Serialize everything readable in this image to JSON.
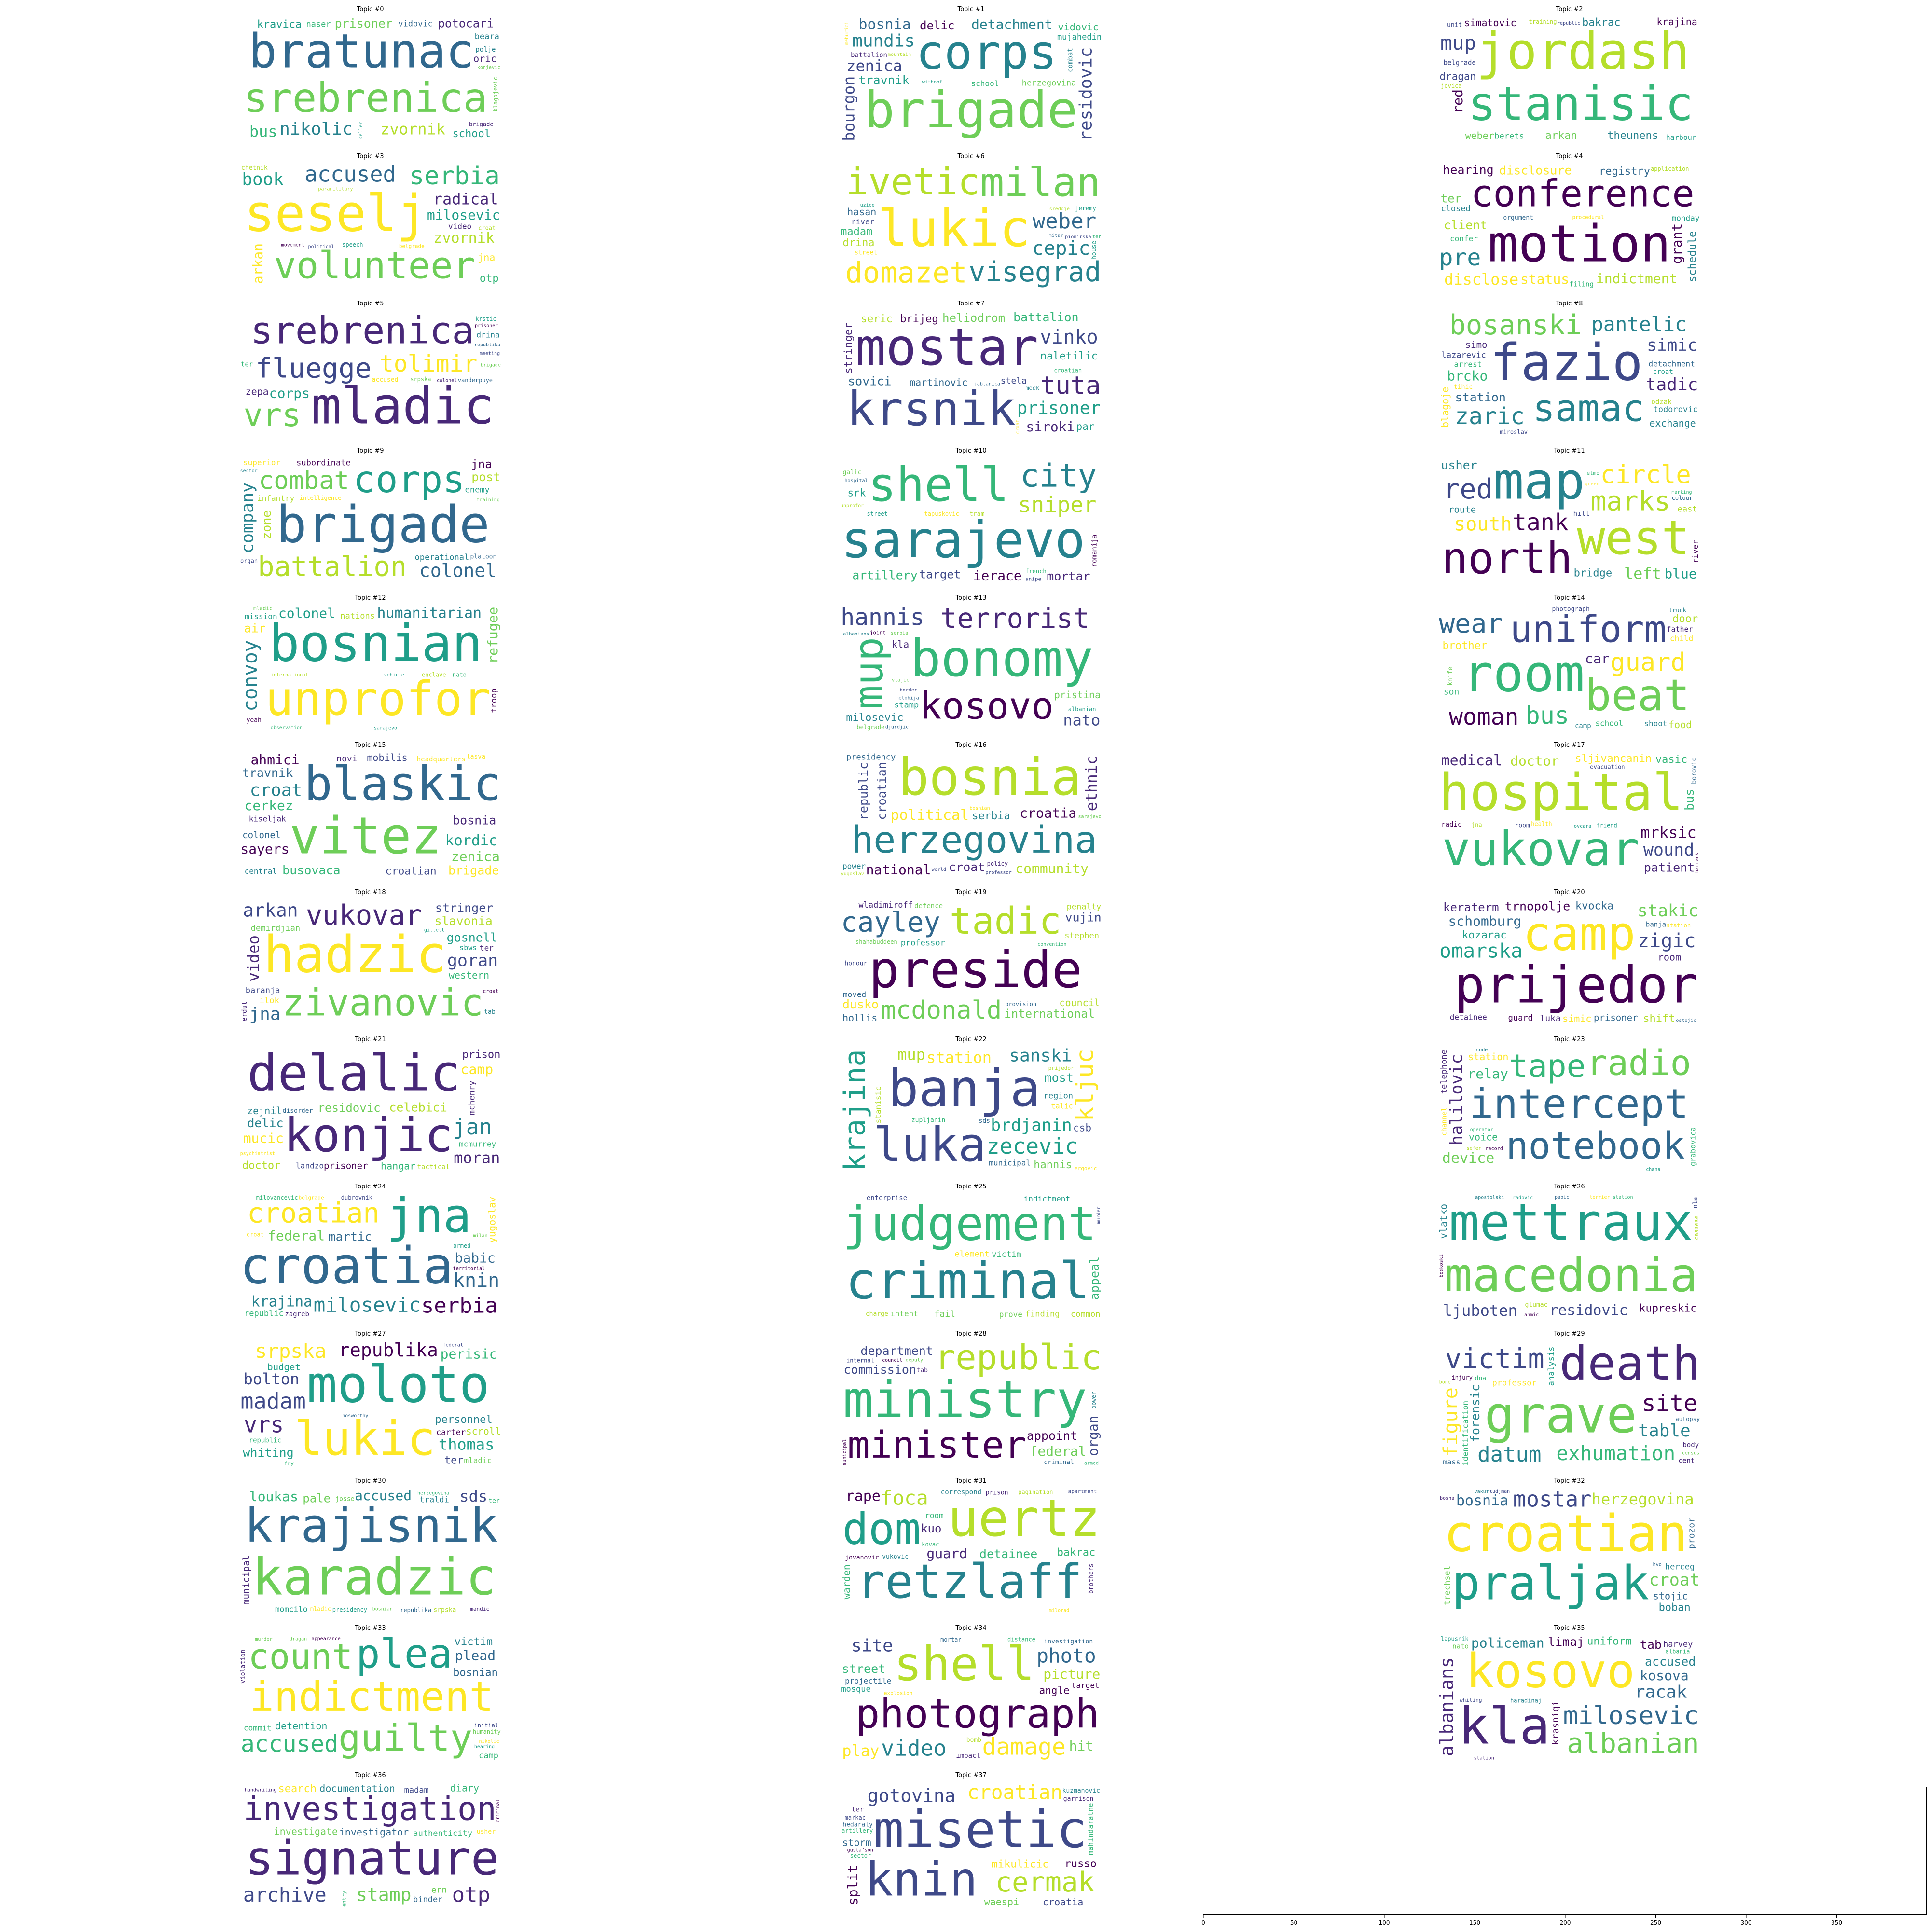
{
  "chart_data": {
    "type": "wordcloud-grid",
    "colormap": "viridis",
    "panels": [
      {
        "title": "Topic #0",
        "words": [
          "srebrenica",
          "bratunac",
          "nikolic",
          "zvornik",
          "potocari",
          "school",
          "bus",
          "kravica",
          "prisoner",
          "vidovic",
          "oric",
          "naser",
          "konjevic",
          "beara",
          "brigade",
          "blagojevic",
          "richardson",
          "seller",
          "polje",
          "stojanovic"
        ]
      },
      {
        "title": "Topic #1",
        "words": [
          "brigade",
          "corps",
          "mundis",
          "zenica",
          "bosnia",
          "detachment",
          "travnik",
          "mujahedin",
          "hadzihasanovic",
          "residovic",
          "vidovic",
          "herzegovina",
          "bourgon",
          "mehurici",
          "delic",
          "school",
          "battalion",
          "withopf",
          "combat",
          "mountain"
        ]
      },
      {
        "title": "Topic #2",
        "words": [
          "jordash",
          "stanisic",
          "serbia",
          "mup",
          "petrovic",
          "arkan",
          "weber",
          "theunens",
          "simatovic",
          "bakrac",
          "krajina",
          "berets",
          "training",
          "red",
          "harbour",
          "dragan",
          "belgrade",
          "jovica",
          "republic",
          "unit"
        ]
      },
      {
        "title": "Topic #3",
        "words": [
          "seselj",
          "volunteer",
          "accused",
          "serbia",
          "zvornik",
          "milosevic",
          "radical",
          "arkan",
          "bijeljina",
          "book",
          "video",
          "chetnik",
          "jna",
          "otp",
          "croat",
          "speech",
          "belgrade",
          "political",
          "movement",
          "paramilitary"
        ]
      },
      {
        "title": "Topic #6",
        "words": [
          "lukic",
          "ivetic",
          "visegrad",
          "milan",
          "domazet",
          "weber",
          "cepic",
          "madam",
          "hasan",
          "drina",
          "alarid",
          "street",
          "river",
          "mitar",
          "jeremy",
          "ter",
          "sredoje",
          "uzice",
          "pionirska",
          "house"
        ]
      },
      {
        "title": "Topic #4",
        "words": [
          "motion",
          "conference",
          "status",
          "disclose",
          "pre",
          "indictment",
          "hearing",
          "registry",
          "disclosure",
          "schedule",
          "client",
          "closed",
          "application",
          "grant",
          "ter",
          "confer",
          "procedural",
          "monday",
          "filing",
          "orgument"
        ]
      },
      {
        "title": "Topic #5",
        "words": [
          "mladic",
          "srebrenica",
          "fluegge",
          "vrs",
          "tolimir",
          "corps",
          "zepa",
          "enclave",
          "drina",
          "accused",
          "srpska",
          "colonel",
          "krstic",
          "republika",
          "vanderpuye",
          "prisoner",
          "ter",
          "brigade",
          "meeting",
          "directive"
        ]
      },
      {
        "title": "Topic #7",
        "words": [
          "mostar",
          "krsnik",
          "prisoner",
          "tuta",
          "heliodrom",
          "naletilic",
          "vinko",
          "stringer",
          "battalion",
          "siroki",
          "sovici",
          "brijeg",
          "martinovic",
          "seric",
          "croatian",
          "par",
          "stela",
          "meek",
          "jablanica",
          "croat"
        ]
      },
      {
        "title": "Topic #8",
        "words": [
          "fazio",
          "samac",
          "bosanski",
          "pantelic",
          "zaric",
          "simic",
          "exchange",
          "tadic",
          "station",
          "todorovic",
          "detachment",
          "brcko",
          "blagoje",
          "lazarevic",
          "simo",
          "arrest",
          "odzak",
          "miroslav",
          "croat",
          "tihic"
        ]
      },
      {
        "title": "Topic #9",
        "words": [
          "brigade",
          "corps",
          "battalion",
          "combat",
          "colonel",
          "company",
          "post",
          "subordinate",
          "zone",
          "platoon",
          "infantry",
          "operational",
          "superior",
          "enemy",
          "jna",
          "intelligence",
          "training",
          "organ",
          "artillery",
          "sector"
        ]
      },
      {
        "title": "Topic #10",
        "words": [
          "sarajevo",
          "shell",
          "sniper",
          "city",
          "target",
          "pilipovic",
          "mortar",
          "ierace",
          "artillery",
          "dobrinja",
          "tapuskovic",
          "galic",
          "street",
          "unprofor",
          "french",
          "srk",
          "snipe",
          "hospital",
          "romanija",
          "tram"
        ]
      },
      {
        "title": "Topic #11",
        "words": [
          "map",
          "west",
          "north",
          "circle",
          "tank",
          "marks",
          "south",
          "red",
          "left",
          "bridge",
          "river",
          "blue",
          "usher",
          "east",
          "route",
          "colour",
          "hill",
          "green",
          "elmo",
          "marking"
        ]
      },
      {
        "title": "Topic #12",
        "words": [
          "bosnian",
          "unprofor",
          "colonel",
          "convoy",
          "humanitarian",
          "refugee",
          "united",
          "nations",
          "mission",
          "headquarters",
          "air",
          "troop",
          "enclave",
          "yeah",
          "sarajevo",
          "nato",
          "observation",
          "international",
          "mladic",
          "vehicle"
        ]
      },
      {
        "title": "Topic #13",
        "words": [
          "bonomy",
          "kosovo",
          "terrorist",
          "mup",
          "hannis",
          "milosevic",
          "nato",
          "djordjevic",
          "pristina",
          "stamp",
          "albanian",
          "border",
          "kla",
          "metohija",
          "belgrade",
          "djurdjic",
          "joint",
          "serbia",
          "vlajic",
          "albanians"
        ]
      },
      {
        "title": "Topic #14",
        "words": [
          "room",
          "uniform",
          "beat",
          "guard",
          "woman",
          "wear",
          "bus",
          "brother",
          "child",
          "door",
          "school",
          "car",
          "food",
          "photograph",
          "father",
          "shoot",
          "son",
          "truck",
          "camp",
          "knife"
        ]
      },
      {
        "title": "Topic #15",
        "words": [
          "vitez",
          "blaskic",
          "croat",
          "busovaca",
          "kordic",
          "ahmici",
          "travnik",
          "zenica",
          "bosnia",
          "croatian",
          "brigade",
          "cerkez",
          "mobilis",
          "sayers",
          "colonel",
          "kiseljak",
          "novi",
          "central",
          "headquarters",
          "lasva"
        ]
      },
      {
        "title": "Topic #16",
        "words": [
          "bosnia",
          "herzegovina",
          "croatia",
          "republic",
          "political",
          "community",
          "ethnic",
          "national",
          "croat",
          "serbia",
          "croatian",
          "presidency",
          "power",
          "bosnian",
          "policy",
          "professor",
          "international",
          "yugoslav",
          "sarajevo",
          "world"
        ]
      },
      {
        "title": "Topic #17",
        "words": [
          "hospital",
          "vukovar",
          "doctor",
          "patient",
          "medical",
          "wound",
          "bus",
          "sljivancanin",
          "mrksic",
          "vasic",
          "health",
          "borovic",
          "jna",
          "ovcara",
          "belgrade",
          "evacuation",
          "radic",
          "friend",
          "barrack",
          "room"
        ]
      },
      {
        "title": "Topic #18",
        "words": [
          "hadzic",
          "zivanovic",
          "vukovar",
          "stringer",
          "arkan",
          "goran",
          "gosnell",
          "jna",
          "slavonia",
          "baranja",
          "western",
          "demirdjian",
          "video",
          "ilok",
          "sbws",
          "ter",
          "croat",
          "gillett",
          "erdut",
          "tab"
        ]
      },
      {
        "title": "Topic #19",
        "words": [
          "preside",
          "tadic",
          "cayley",
          "mcdonald",
          "international",
          "presiding",
          "dusko",
          "wladimiroff",
          "vujin",
          "professor",
          "council",
          "penalty",
          "hollis",
          "stephen",
          "shahabuddeen",
          "provision",
          "defence",
          "moved",
          "convention",
          "honour"
        ]
      },
      {
        "title": "Topic #20",
        "words": [
          "prijedor",
          "camp",
          "schomburg",
          "omarska",
          "keraterm",
          "stakic",
          "zigic",
          "kozarac",
          "trnopolje",
          "shift",
          "simic",
          "guard",
          "room",
          "kvocka",
          "prisoner",
          "detainee",
          "luka",
          "station",
          "banja",
          "ostojic"
        ]
      },
      {
        "title": "Topic #21",
        "words": [
          "delalic",
          "konjic",
          "jan",
          "celebici",
          "residovic",
          "mucic",
          "moran",
          "camp",
          "delic",
          "mchenry",
          "zejnil",
          "doctor",
          "hangar",
          "prison",
          "prisoner",
          "mcmurrey",
          "tactical",
          "landzo",
          "psychiatrist",
          "disorder"
        ]
      },
      {
        "title": "Topic #22",
        "words": [
          "banja",
          "luka",
          "zecevic",
          "station",
          "krajina",
          "brdjanin",
          "kljuc",
          "sanski",
          "mup",
          "hannis",
          "most",
          "region",
          "municipal",
          "zupljanin",
          "talic",
          "csb",
          "ergovic",
          "stanisic",
          "prijedor",
          "sds"
        ]
      },
      {
        "title": "Topic #23",
        "words": [
          "intercept",
          "notebook",
          "radio",
          "tape",
          "device",
          "halilovic",
          "equipment",
          "relay",
          "frequency",
          "participant",
          "station",
          "telephone",
          "voice",
          "sefer",
          "grabovica",
          "operator",
          "chana",
          "code",
          "channel",
          "record"
        ]
      },
      {
        "title": "Topic #24",
        "words": [
          "croatia",
          "jna",
          "croatian",
          "milosevic",
          "krajina",
          "serbia",
          "knin",
          "federal",
          "martic",
          "babic",
          "dubrovnik",
          "republic",
          "yugoslav",
          "territorial",
          "milovancevic",
          "armed",
          "zagreb",
          "croat",
          "belgrade",
          "milan"
        ]
      },
      {
        "title": "Topic #25",
        "words": [
          "criminal",
          "judgement",
          "commit",
          "appeal",
          "argument",
          "reasonable",
          "perpetrator",
          "finding",
          "intent",
          "element",
          "prove",
          "common",
          "indictment",
          "victim",
          "international",
          "murder",
          "fail",
          "appellant",
          "enterprise",
          "charge"
        ]
      },
      {
        "title": "Topic #26",
        "words": [
          "mettraux",
          "macedonia",
          "macedonian",
          "ljuboten",
          "residovic",
          "kupreskic",
          "vlatko",
          "zoran",
          "ahmici",
          "glumac",
          "cassese",
          "nla",
          "skopje",
          "boskoski",
          "ahmic",
          "papic",
          "terrier",
          "radovic",
          "station",
          "apostolski"
        ]
      },
      {
        "title": "Topic #27",
        "words": [
          "moloto",
          "lukic",
          "madam",
          "srpska",
          "republika",
          "perisic",
          "thomas",
          "personnel",
          "bolton",
          "vrs",
          "whiting",
          "ter",
          "scroll",
          "carter",
          "budget",
          "mladic",
          "republic",
          "federal",
          "fry",
          "nosworthy"
        ]
      },
      {
        "title": "Topic #28",
        "words": [
          "ministry",
          "minister",
          "republic",
          "department",
          "administration",
          "organ",
          "commission",
          "federal",
          "appoint",
          "criminal",
          "internal",
          "deputy",
          "municipal",
          "council",
          "armed",
          "power",
          "district",
          "provision",
          "legislation",
          "tab"
        ]
      },
      {
        "title": "Topic #29",
        "words": [
          "grave",
          "death",
          "victim",
          "exhumation",
          "site",
          "datum",
          "figure",
          "table",
          "forensic",
          "analysis",
          "identification",
          "professor",
          "injury",
          "census",
          "mass",
          "autopsy",
          "cent",
          "bone",
          "body",
          "dna"
        ]
      },
      {
        "title": "Topic #30",
        "words": [
          "karadzic",
          "krajisnik",
          "accused",
          "sds",
          "pale",
          "loukas",
          "sarajevo",
          "traldi",
          "bosnia",
          "srpska",
          "presidency",
          "josse",
          "momcilo",
          "herzegovina",
          "municipal",
          "republika",
          "mandic",
          "mladic",
          "bosnian",
          "ter"
        ]
      },
      {
        "title": "Topic #31",
        "words": [
          "uertz",
          "retzlaff",
          "dom",
          "foca",
          "rape",
          "guard",
          "detainee",
          "bakrac",
          "room",
          "prison",
          "kovac",
          "jovanovic",
          "warden",
          "vukovic",
          "kuo",
          "milorad",
          "correspond",
          "pagination",
          "apartment",
          "brothers"
        ]
      },
      {
        "title": "Topic #32",
        "words": [
          "croatian",
          "praljak",
          "mostar",
          "herzegovina",
          "bosnia",
          "croat",
          "petkovic",
          "boban",
          "stojic",
          "trechsel",
          "prlic",
          "herceg",
          "alaburic",
          "vakuf",
          "tudjman",
          "bosna",
          "prozor",
          "coric",
          "croatia",
          "hvo"
        ]
      },
      {
        "title": "Topic #33",
        "words": [
          "indictment",
          "guilty",
          "count",
          "plea",
          "accused",
          "bosnian",
          "detention",
          "plead",
          "commit",
          "victim",
          "humanity",
          "camp",
          "initial",
          "hearing",
          "nikolic",
          "appearance",
          "dragan",
          "murder",
          "criminal",
          "violation"
        ]
      },
      {
        "title": "Topic #34",
        "words": [
          "photograph",
          "shell",
          "video",
          "photo",
          "damage",
          "picture",
          "street",
          "site",
          "projectile",
          "investigation",
          "target",
          "mosque",
          "play",
          "hit",
          "distance",
          "angle",
          "impact",
          "mortar",
          "explosion",
          "bomb"
        ]
      },
      {
        "title": "Topic #35",
        "words": [
          "kla",
          "kosovo",
          "albanian",
          "milosevic",
          "albanians",
          "policeman",
          "accused",
          "racak",
          "tab",
          "uniform",
          "limaj",
          "kosova",
          "haradinaj",
          "harvey",
          "krasniqi",
          "lapusnik",
          "nato",
          "albania",
          "whiting",
          "station"
        ]
      },
      {
        "title": "Topic #36",
        "words": [
          "investigation",
          "signature",
          "book",
          "archive",
          "stamp",
          "otp",
          "investigator",
          "search",
          "documentation",
          "authenticity",
          "investigate",
          "binder",
          "diary",
          "madam",
          "handwriting",
          "criminal",
          "ern",
          "identification",
          "entry",
          "usher"
        ]
      },
      {
        "title": "Topic #37",
        "words": [
          "misetic",
          "knin",
          "cermak",
          "croatian",
          "gotovina",
          "mikulicic",
          "storm",
          "russo",
          "croatia",
          "split",
          "waespi",
          "garrison",
          "markac",
          "kuzmanovic",
          "mahindaratne",
          "artillery",
          "ter",
          "sector",
          "gustafson",
          "hedaraly"
        ]
      }
    ],
    "empty_axes": {
      "xlim": [
        0,
        400
      ],
      "x_ticks": [
        0,
        50,
        100,
        150,
        200,
        250,
        300,
        350
      ]
    }
  }
}
